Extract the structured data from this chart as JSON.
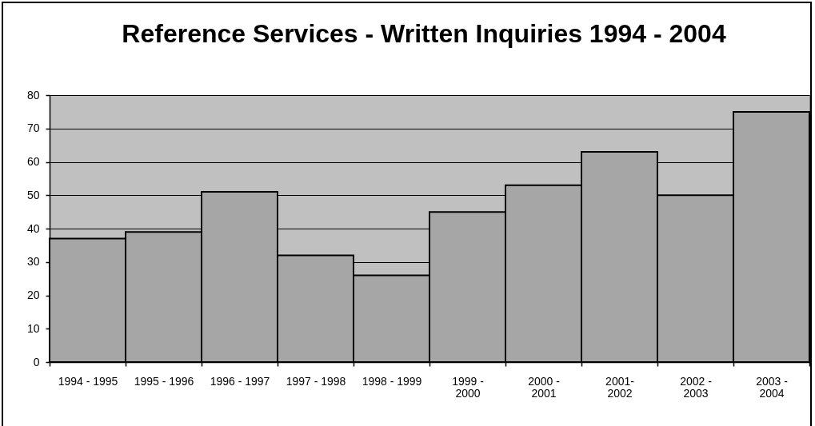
{
  "chart_data": {
    "type": "bar",
    "title": "Reference Services - Written Inquiries 1994 - 2004",
    "categories": [
      "1994 - 1995",
      "1995 - 1996",
      "1996 - 1997",
      "1997 - 1998",
      "1998 - 1999",
      "1999 -\n2000",
      "2000 -\n2001",
      "2001-\n2002",
      "2002 -\n2003",
      "2003 -\n2004"
    ],
    "values": [
      37,
      39,
      51,
      32,
      26,
      45,
      53,
      63,
      50,
      75
    ],
    "color": "#a6a6a6",
    "ylim": [
      0,
      80
    ],
    "yticks": [
      0,
      10,
      20,
      30,
      40,
      50,
      60,
      70,
      80
    ],
    "grid": "y"
  }
}
